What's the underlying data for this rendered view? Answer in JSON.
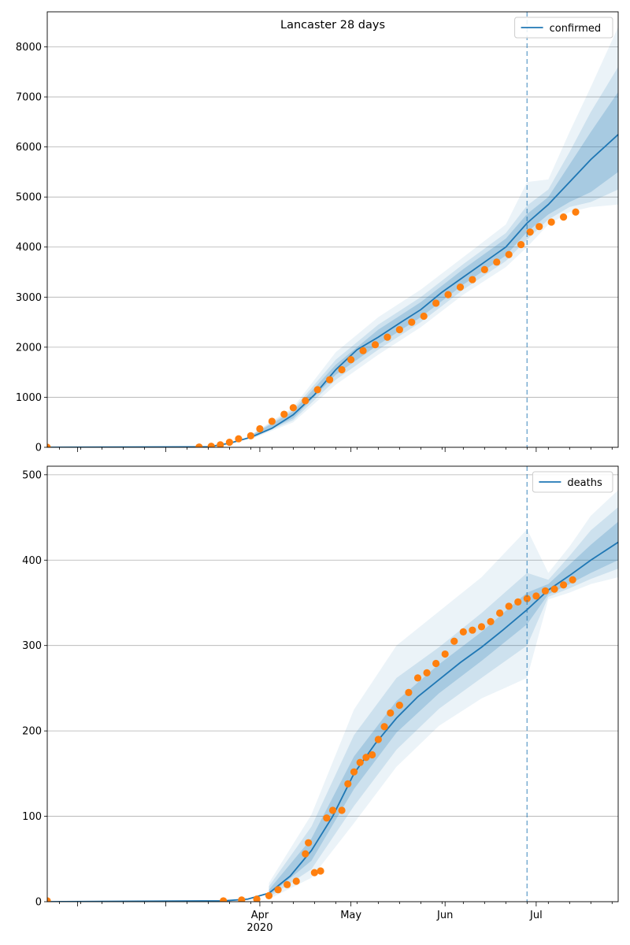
{
  "chart_data": [
    {
      "type": "line",
      "title": "Lancaster 28 days",
      "xlabel": "",
      "ylabel": "",
      "x_range": [
        "2020-01-22",
        "2020-07-28"
      ],
      "ylim": [
        0,
        8700
      ],
      "y_ticks": [
        0,
        1000,
        2000,
        3000,
        4000,
        5000,
        6000,
        7000,
        8000
      ],
      "x_tick_labels": [
        {
          "date": "2020-04-01",
          "label": "Apr"
        },
        {
          "date": "2020-05-01",
          "label": "May"
        },
        {
          "date": "2020-06-01",
          "label": "Jun"
        },
        {
          "date": "2020-07-01",
          "label": "Jul"
        }
      ],
      "grid": "y",
      "legend": "top-right",
      "forecast_start": "2020-06-28",
      "series": [
        {
          "name": "confirmed",
          "kind": "model-line",
          "color": "#1f77b4",
          "points": [
            [
              "2020-01-22",
              0
            ],
            [
              "2020-03-15",
              10
            ],
            [
              "2020-03-22",
              80
            ],
            [
              "2020-03-29",
              200
            ],
            [
              "2020-04-05",
              380
            ],
            [
              "2020-04-12",
              650
            ],
            [
              "2020-04-19",
              1050
            ],
            [
              "2020-04-26",
              1550
            ],
            [
              "2020-05-03",
              1950
            ],
            [
              "2020-05-10",
              2200
            ],
            [
              "2020-05-17",
              2480
            ],
            [
              "2020-05-24",
              2750
            ],
            [
              "2020-05-31",
              3100
            ],
            [
              "2020-06-07",
              3400
            ],
            [
              "2020-06-14",
              3700
            ],
            [
              "2020-06-21",
              4000
            ],
            [
              "2020-06-28",
              4480
            ],
            [
              "2020-07-05",
              4850
            ],
            [
              "2020-07-12",
              5300
            ],
            [
              "2020-07-19",
              5750
            ],
            [
              "2020-07-28",
              6250
            ]
          ],
          "bands": [
            {
              "opacity": 0.22,
              "points": [
                [
                  "2020-03-29",
                  180,
                  230
                ],
                [
                  "2020-04-12",
                  580,
                  720
                ],
                [
                  "2020-04-26",
                  1450,
                  1650
                ],
                [
                  "2020-05-10",
                  2050,
                  2350
                ],
                [
                  "2020-05-24",
                  2600,
                  2900
                ],
                [
                  "2020-06-07",
                  3250,
                  3560
                ],
                [
                  "2020-06-21",
                  3830,
                  4170
                ],
                [
                  "2020-06-28",
                  4300,
                  4660
                ],
                [
                  "2020-07-05",
                  4650,
                  5000
                ],
                [
                  "2020-07-12",
                  4900,
                  5650
                ],
                [
                  "2020-07-19",
                  5100,
                  6300
                ],
                [
                  "2020-07-28",
                  5500,
                  7100
                ]
              ]
            },
            {
              "opacity": 0.14,
              "points": [
                [
                  "2020-03-29",
                  170,
                  240
                ],
                [
                  "2020-04-12",
                  540,
                  760
                ],
                [
                  "2020-04-26",
                  1350,
                  1750
                ],
                [
                  "2020-05-10",
                  1950,
                  2450
                ],
                [
                  "2020-05-24",
                  2500,
                  3000
                ],
                [
                  "2020-06-07",
                  3150,
                  3660
                ],
                [
                  "2020-06-21",
                  3720,
                  4280
                ],
                [
                  "2020-06-28",
                  4150,
                  4830
                ],
                [
                  "2020-07-05",
                  4550,
                  5150
                ],
                [
                  "2020-07-12",
                  4800,
                  5900
                ],
                [
                  "2020-07-19",
                  4900,
                  6700
                ],
                [
                  "2020-07-28",
                  5150,
                  7600
                ]
              ]
            },
            {
              "opacity": 0.09,
              "points": [
                [
                  "2020-03-29",
                  160,
                  250
                ],
                [
                  "2020-04-12",
                  500,
                  800
                ],
                [
                  "2020-04-26",
                  1250,
                  1900
                ],
                [
                  "2020-05-10",
                  1850,
                  2600
                ],
                [
                  "2020-05-24",
                  2400,
                  3150
                ],
                [
                  "2020-06-07",
                  3050,
                  3800
                ],
                [
                  "2020-06-21",
                  3600,
                  4450
                ],
                [
                  "2020-06-28",
                  4000,
                  5300
                ],
                [
                  "2020-07-05",
                  4450,
                  5350
                ],
                [
                  "2020-07-12",
                  4700,
                  6300
                ],
                [
                  "2020-07-19",
                  4800,
                  7200
                ],
                [
                  "2020-07-28",
                  4850,
                  8400
                ]
              ]
            }
          ]
        },
        {
          "name": "",
          "kind": "observed-points",
          "color": "#ff7f0e",
          "points": [
            [
              "2020-01-22",
              0
            ],
            [
              "2020-03-12",
              5
            ],
            [
              "2020-03-16",
              20
            ],
            [
              "2020-03-19",
              50
            ],
            [
              "2020-03-22",
              100
            ],
            [
              "2020-03-25",
              170
            ],
            [
              "2020-03-29",
              230
            ],
            [
              "2020-04-01",
              370
            ],
            [
              "2020-04-05",
              520
            ],
            [
              "2020-04-09",
              660
            ],
            [
              "2020-04-12",
              790
            ],
            [
              "2020-04-16",
              930
            ],
            [
              "2020-04-20",
              1150
            ],
            [
              "2020-04-24",
              1350
            ],
            [
              "2020-04-28",
              1550
            ],
            [
              "2020-05-01",
              1750
            ],
            [
              "2020-05-05",
              1930
            ],
            [
              "2020-05-09",
              2050
            ],
            [
              "2020-05-13",
              2200
            ],
            [
              "2020-05-17",
              2350
            ],
            [
              "2020-05-21",
              2500
            ],
            [
              "2020-05-25",
              2620
            ],
            [
              "2020-05-29",
              2880
            ],
            [
              "2020-06-02",
              3050
            ],
            [
              "2020-06-06",
              3200
            ],
            [
              "2020-06-10",
              3350
            ],
            [
              "2020-06-14",
              3550
            ],
            [
              "2020-06-18",
              3700
            ],
            [
              "2020-06-22",
              3850
            ],
            [
              "2020-06-26",
              4050
            ],
            [
              "2020-06-29",
              4300
            ],
            [
              "2020-07-02",
              4410
            ],
            [
              "2020-07-06",
              4500
            ],
            [
              "2020-07-10",
              4600
            ],
            [
              "2020-07-14",
              4700
            ]
          ]
        }
      ]
    },
    {
      "type": "line",
      "title": "",
      "xlabel": "2020",
      "ylabel": "",
      "x_range": [
        "2020-01-22",
        "2020-07-28"
      ],
      "ylim": [
        0,
        510
      ],
      "y_ticks": [
        0,
        100,
        200,
        300,
        400,
        500
      ],
      "x_tick_labels": [
        {
          "date": "2020-04-01",
          "label": "Apr"
        },
        {
          "date": "2020-05-01",
          "label": "May"
        },
        {
          "date": "2020-06-01",
          "label": "Jun"
        },
        {
          "date": "2020-07-01",
          "label": "Jul"
        }
      ],
      "grid": "y",
      "legend": "top-right",
      "forecast_start": "2020-06-28",
      "series": [
        {
          "name": "deaths",
          "kind": "model-line",
          "color": "#1f77b4",
          "points": [
            [
              "2020-01-22",
              0
            ],
            [
              "2020-03-20",
              1
            ],
            [
              "2020-03-28",
              3
            ],
            [
              "2020-04-04",
              10
            ],
            [
              "2020-04-11",
              30
            ],
            [
              "2020-04-18",
              60
            ],
            [
              "2020-04-25",
              100
            ],
            [
              "2020-05-02",
              150
            ],
            [
              "2020-05-09",
              185
            ],
            [
              "2020-05-16",
              215
            ],
            [
              "2020-05-23",
              240
            ],
            [
              "2020-05-30",
              260
            ],
            [
              "2020-06-06",
              280
            ],
            [
              "2020-06-13",
              298
            ],
            [
              "2020-06-20",
              318
            ],
            [
              "2020-06-28",
              342
            ],
            [
              "2020-07-05",
              365
            ],
            [
              "2020-07-12",
              382
            ],
            [
              "2020-07-19",
              400
            ],
            [
              "2020-07-28",
              421
            ]
          ],
          "bands": [
            {
              "opacity": 0.22,
              "points": [
                [
                  "2020-04-04",
                  7,
                  14
                ],
                [
                  "2020-04-18",
                  48,
                  74
                ],
                [
                  "2020-05-02",
                  132,
                  170
                ],
                [
                  "2020-05-16",
                  198,
                  235
                ],
                [
                  "2020-05-30",
                  244,
                  278
                ],
                [
                  "2020-06-13",
                  282,
                  316
                ],
                [
                  "2020-06-28",
                  325,
                  362
                ],
                [
                  "2020-07-05",
                  360,
                  372
                ],
                [
                  "2020-07-12",
                  372,
                  395
                ],
                [
                  "2020-07-19",
                  385,
                  418
                ],
                [
                  "2020-07-28",
                  400,
                  445
                ]
              ]
            },
            {
              "opacity": 0.14,
              "points": [
                [
                  "2020-04-04",
                  5,
                  18
                ],
                [
                  "2020-04-18",
                  38,
                  88
                ],
                [
                  "2020-05-02",
                  112,
                  195
                ],
                [
                  "2020-05-16",
                  178,
                  262
                ],
                [
                  "2020-05-30",
                  226,
                  298
                ],
                [
                  "2020-06-13",
                  262,
                  338
                ],
                [
                  "2020-06-28",
                  300,
                  385
                ],
                [
                  "2020-07-05",
                  357,
                  377
                ],
                [
                  "2020-07-12",
                  367,
                  405
                ],
                [
                  "2020-07-19",
                  378,
                  435
                ],
                [
                  "2020-07-28",
                  390,
                  462
                ]
              ]
            },
            {
              "opacity": 0.09,
              "points": [
                [
                  "2020-04-04",
                  3,
                  22
                ],
                [
                  "2020-04-18",
                  28,
                  102
                ],
                [
                  "2020-05-02",
                  92,
                  225
                ],
                [
                  "2020-05-16",
                  158,
                  300
                ],
                [
                  "2020-05-30",
                  206,
                  340
                ],
                [
                  "2020-06-13",
                  238,
                  380
                ],
                [
                  "2020-06-28",
                  262,
                  436
                ],
                [
                  "2020-07-05",
                  354,
                  385
                ],
                [
                  "2020-07-12",
                  362,
                  416
                ],
                [
                  "2020-07-19",
                  372,
                  452
                ],
                [
                  "2020-07-28",
                  380,
                  482
                ]
              ]
            }
          ]
        },
        {
          "name": "",
          "kind": "observed-points",
          "color": "#ff7f0e",
          "points": [
            [
              "2020-01-22",
              1
            ],
            [
              "2020-03-20",
              1
            ],
            [
              "2020-03-26",
              2
            ],
            [
              "2020-03-31",
              3
            ],
            [
              "2020-04-04",
              7
            ],
            [
              "2020-04-07",
              14
            ],
            [
              "2020-04-10",
              20
            ],
            [
              "2020-04-13",
              24
            ],
            [
              "2020-04-16",
              56
            ],
            [
              "2020-04-17",
              69
            ],
            [
              "2020-04-19",
              34
            ],
            [
              "2020-04-21",
              36
            ],
            [
              "2020-04-23",
              98
            ],
            [
              "2020-04-25",
              107
            ],
            [
              "2020-04-28",
              107
            ],
            [
              "2020-04-30",
              138
            ],
            [
              "2020-05-02",
              152
            ],
            [
              "2020-05-04",
              163
            ],
            [
              "2020-05-06",
              169
            ],
            [
              "2020-05-08",
              172
            ],
            [
              "2020-05-10",
              190
            ],
            [
              "2020-05-12",
              205
            ],
            [
              "2020-05-14",
              221
            ],
            [
              "2020-05-17",
              230
            ],
            [
              "2020-05-20",
              245
            ],
            [
              "2020-05-23",
              262
            ],
            [
              "2020-05-26",
              268
            ],
            [
              "2020-05-29",
              279
            ],
            [
              "2020-06-01",
              290
            ],
            [
              "2020-06-04",
              305
            ],
            [
              "2020-06-07",
              316
            ],
            [
              "2020-06-10",
              318
            ],
            [
              "2020-06-13",
              322
            ],
            [
              "2020-06-16",
              328
            ],
            [
              "2020-06-19",
              338
            ],
            [
              "2020-06-22",
              346
            ],
            [
              "2020-06-25",
              351
            ],
            [
              "2020-06-28",
              355
            ],
            [
              "2020-07-01",
              358
            ],
            [
              "2020-07-04",
              364
            ],
            [
              "2020-07-07",
              366
            ],
            [
              "2020-07-10",
              371
            ],
            [
              "2020-07-13",
              377
            ]
          ]
        }
      ]
    }
  ]
}
